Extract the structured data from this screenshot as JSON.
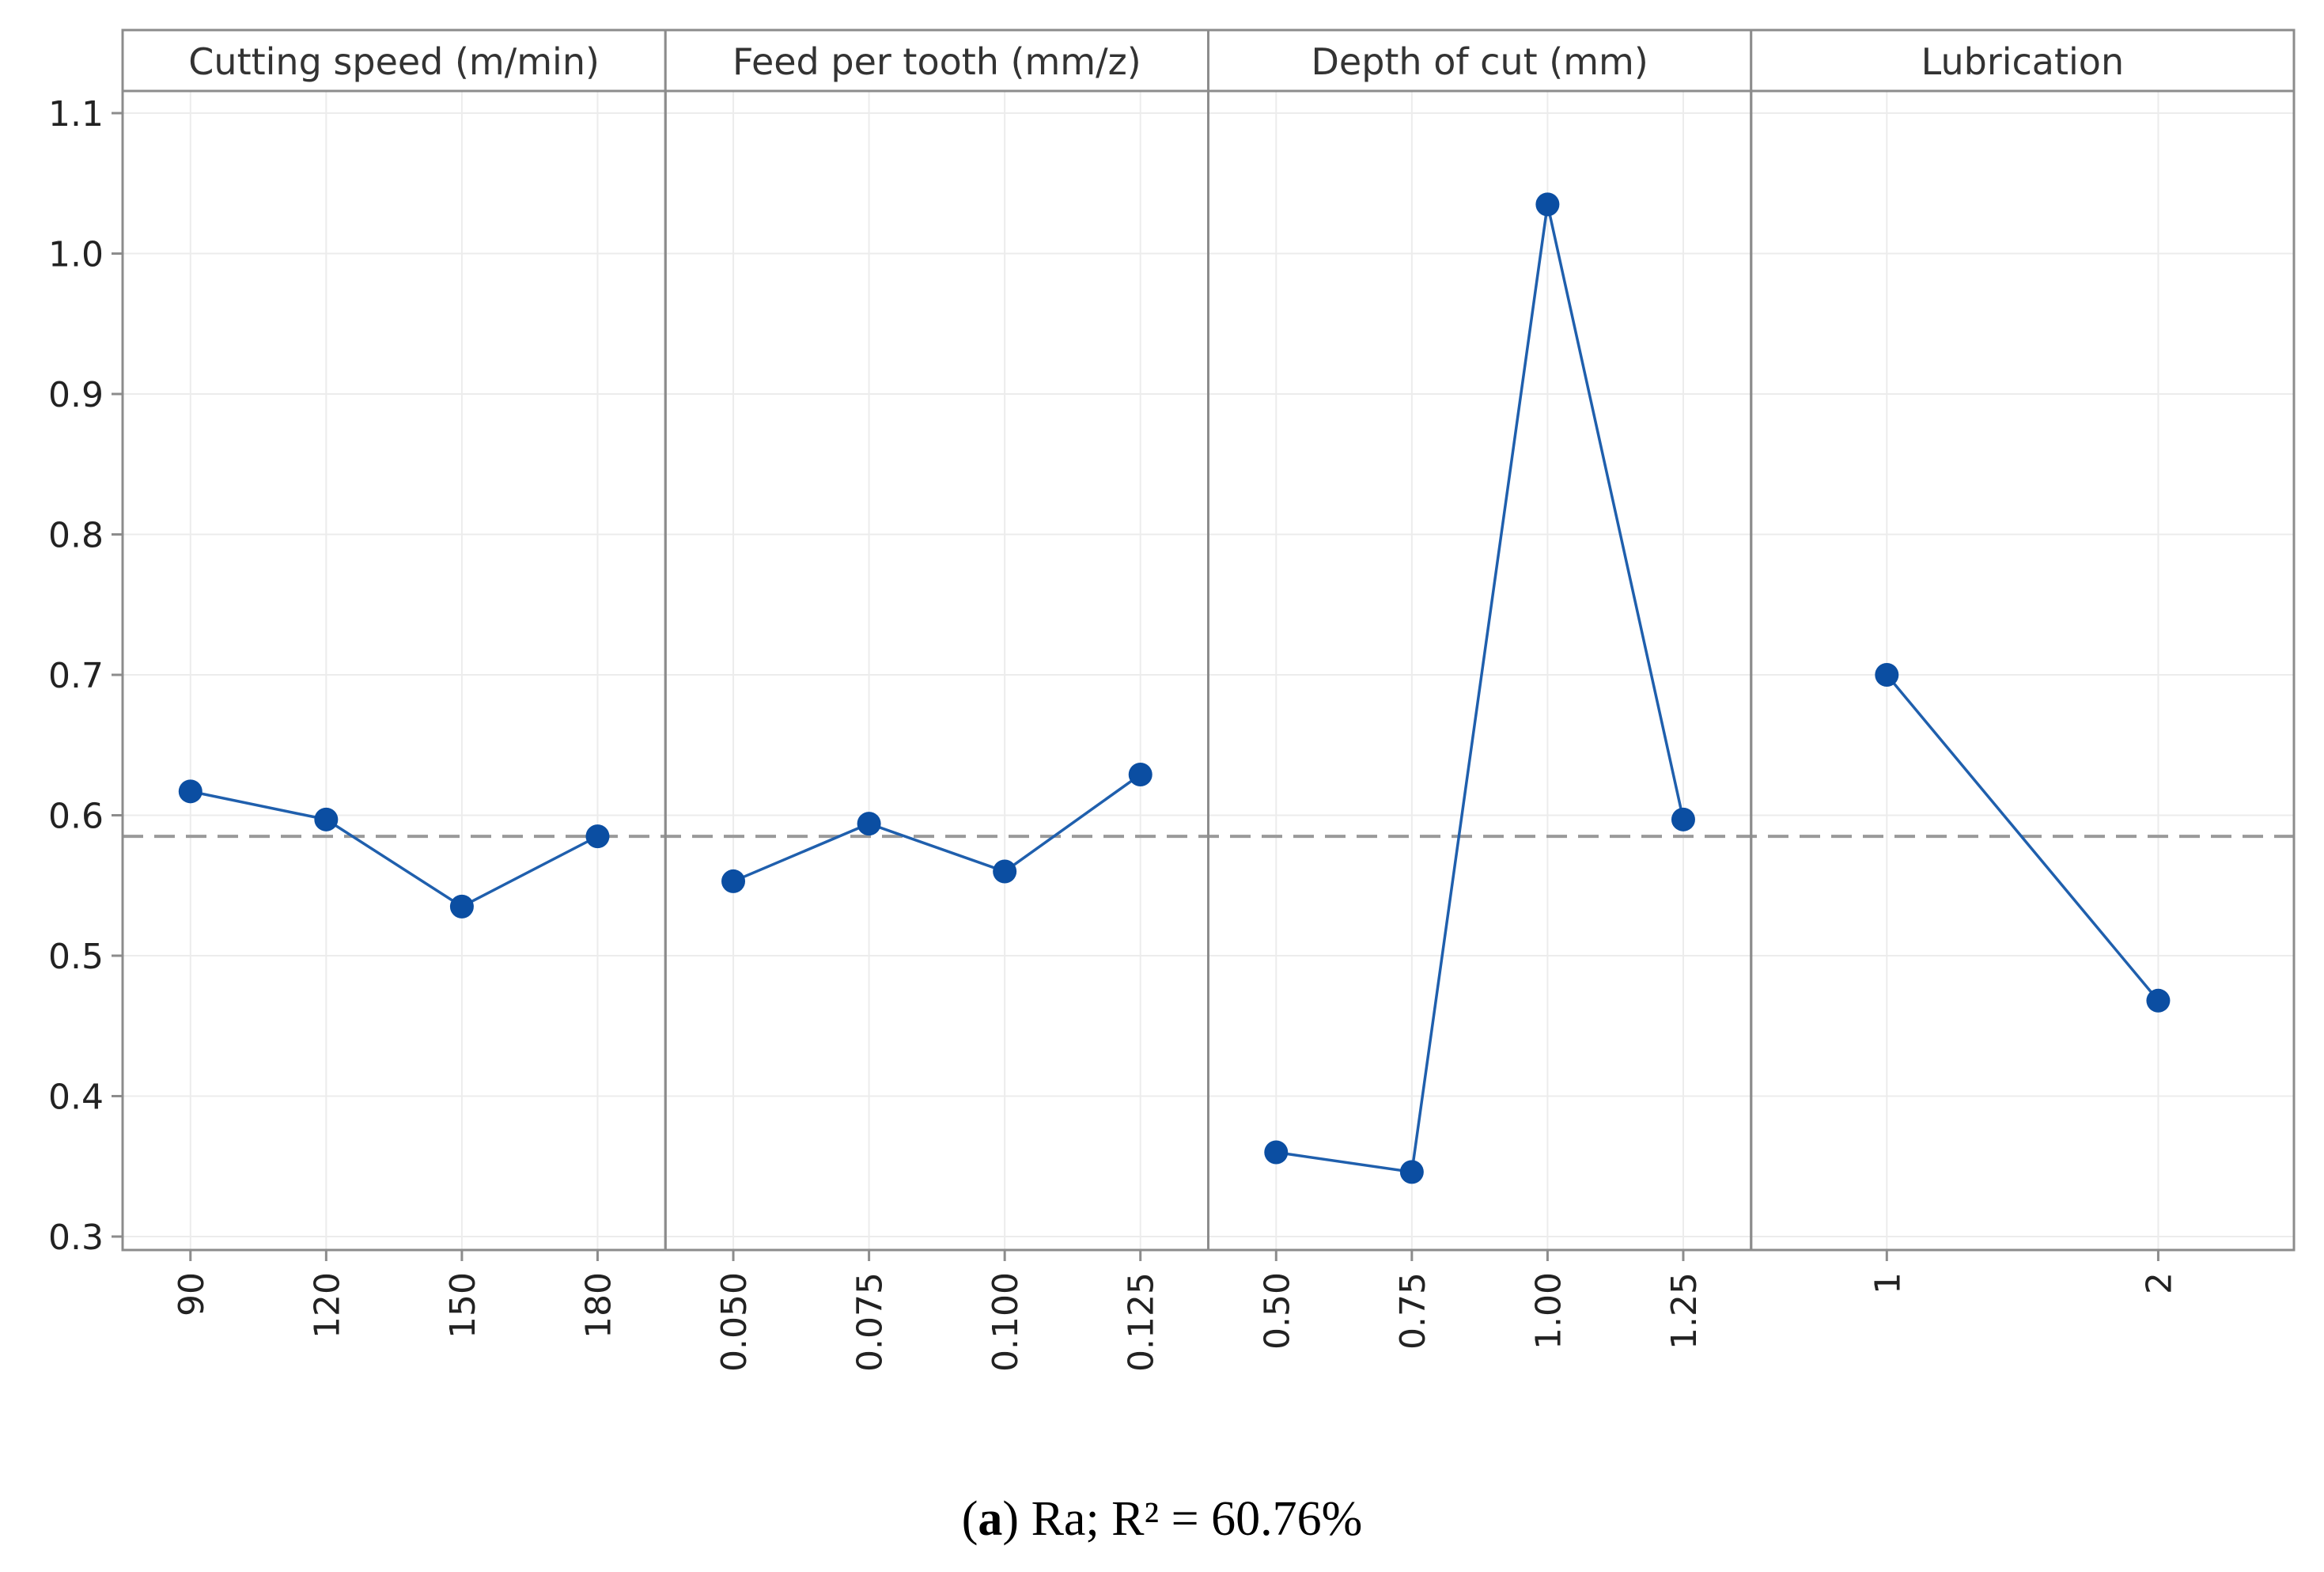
{
  "chart_data": {
    "type": "line",
    "title": "",
    "ylabel": "",
    "ylim": [
      0.3,
      1.1
    ],
    "yticks": [
      "0.3",
      "0.4",
      "0.5",
      "0.6",
      "0.7",
      "0.8",
      "0.9",
      "1.0",
      "1.1"
    ],
    "reference_line": 0.585,
    "grid": true,
    "colors": {
      "series": "#1f5fad",
      "marker": "#0b4ea2",
      "reference": "#9a9a9a",
      "frame": "#8c8c8c"
    },
    "panels": [
      {
        "name": "Cutting speed (m/min)",
        "categories": [
          "90",
          "120",
          "150",
          "180"
        ],
        "values": [
          0.617,
          0.597,
          0.535,
          0.585
        ]
      },
      {
        "name": "Feed per tooth (mm/z)",
        "categories": [
          "0.050",
          "0.075",
          "0.100",
          "0.125"
        ],
        "values": [
          0.553,
          0.594,
          0.56,
          0.629
        ]
      },
      {
        "name": "Depth of cut (mm)",
        "categories": [
          "0.50",
          "0.75",
          "1.00",
          "1.25"
        ],
        "values": [
          0.36,
          0.346,
          1.035,
          0.597
        ]
      },
      {
        "name": "Lubrication",
        "categories": [
          "1",
          "2"
        ],
        "values": [
          0.7,
          0.468
        ]
      }
    ]
  },
  "caption": {
    "label": "a",
    "text": "Ra; R² = 60.76%"
  }
}
